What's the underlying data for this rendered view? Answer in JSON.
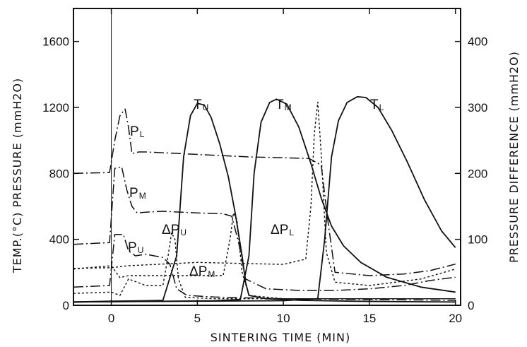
{
  "chart_data": {
    "type": "line",
    "title": "",
    "xlabel": "SINTERING TIME (MIN)",
    "ylabel_left": "TEMP.(°C) PRESSURE (mmH2O)",
    "ylabel_right": "PRESSURE DIFFERENCE (mmH2O)",
    "xlim": [
      -2.2,
      20.3
    ],
    "ylim_left": [
      0,
      1800
    ],
    "ylim_right": [
      0,
      450
    ],
    "x_ticks": [
      0,
      5,
      10,
      15,
      20
    ],
    "y_left_ticks": [
      0,
      400,
      800,
      1200,
      1600
    ],
    "y_right_ticks": [
      0,
      100,
      200,
      300,
      400
    ],
    "grid": false,
    "legend": "none",
    "series": [
      {
        "name": "TU",
        "label_main": "T",
        "label_sub": "U",
        "axis": "left",
        "style": "solid",
        "x": [
          -2.2,
          0,
          2,
          3,
          3.8,
          4.2,
          4.6,
          5.0,
          5.4,
          5.8,
          6.3,
          6.8,
          7.2,
          7.6,
          7.8,
          8.0,
          9,
          11,
          14,
          17,
          20
        ],
        "y": [
          20,
          25,
          28,
          30,
          300,
          900,
          1150,
          1225,
          1215,
          1140,
          980,
          780,
          560,
          300,
          140,
          60,
          40,
          30,
          25,
          22,
          20
        ]
      },
      {
        "name": "TM",
        "label_main": "T",
        "label_sub": "M",
        "axis": "left",
        "style": "solid",
        "x": [
          -2.2,
          0,
          6,
          7.5,
          8.0,
          8.3,
          8.7,
          9.2,
          9.6,
          10.2,
          10.9,
          11.6,
          12.2,
          12.8,
          13.5,
          14.5,
          16,
          18,
          20
        ],
        "y": [
          20,
          22,
          28,
          35,
          300,
          800,
          1110,
          1230,
          1250,
          1220,
          1080,
          860,
          650,
          480,
          360,
          260,
          170,
          110,
          80
        ]
      },
      {
        "name": "TL",
        "label_main": "T",
        "label_sub": "L",
        "axis": "left",
        "style": "solid",
        "x": [
          -2.2,
          0,
          10,
          12.0,
          12.4,
          12.8,
          13.2,
          13.7,
          14.3,
          14.8,
          15.5,
          16.3,
          17.2,
          18.2,
          19.2,
          20
        ],
        "y": [
          20,
          22,
          28,
          40,
          400,
          900,
          1120,
          1230,
          1265,
          1260,
          1200,
          1060,
          870,
          640,
          450,
          350
        ]
      },
      {
        "name": "PL",
        "label_main": "P",
        "label_sub": "L",
        "axis": "left",
        "style": "dash-dot",
        "x": [
          -2.2,
          -0.1,
          0.2,
          0.5,
          0.8,
          1.0,
          1.2,
          1.6,
          2,
          4,
          6,
          8,
          10,
          11.5,
          12.2,
          12.6,
          13,
          15,
          17,
          18.5,
          20
        ],
        "y": [
          800,
          805,
          1000,
          1150,
          1190,
          1080,
          920,
          930,
          930,
          920,
          910,
          900,
          895,
          890,
          850,
          500,
          200,
          180,
          190,
          210,
          250
        ]
      },
      {
        "name": "PM",
        "label_main": "P",
        "label_sub": "M",
        "axis": "left",
        "style": "dash-dot",
        "x": [
          -2.2,
          -0.1,
          0.2,
          0.6,
          0.9,
          1.2,
          1.5,
          2,
          3,
          5,
          6.5,
          7.0,
          7.4,
          7.8,
          9,
          11,
          13,
          15,
          17,
          18.5,
          20
        ],
        "y": [
          370,
          380,
          830,
          840,
          700,
          600,
          560,
          565,
          570,
          560,
          555,
          540,
          380,
          160,
          100,
          90,
          90,
          100,
          120,
          150,
          170
        ]
      },
      {
        "name": "PU",
        "label_main": "P",
        "label_sub": "U",
        "axis": "left",
        "style": "dash-dot",
        "x": [
          -2.2,
          -0.1,
          0.2,
          0.7,
          1.0,
          1.4,
          2,
          3,
          3.4,
          3.8,
          4.4,
          6,
          10,
          15,
          20
        ],
        "y": [
          110,
          120,
          430,
          430,
          330,
          300,
          310,
          290,
          250,
          100,
          60,
          50,
          40,
          35,
          30
        ]
      },
      {
        "name": "ΔPU",
        "label_main": "ΔP",
        "label_sub": "U",
        "axis": "right",
        "style": "dotted",
        "x": [
          -2.2,
          0,
          0.5,
          1.0,
          2,
          3.0,
          3.3,
          3.5,
          3.7,
          3.9,
          4.3,
          6,
          10,
          15,
          20
        ],
        "y": [
          18,
          20,
          15,
          40,
          30,
          30,
          75,
          110,
          100,
          40,
          12,
          10,
          10,
          10,
          10
        ]
      },
      {
        "name": "ΔPM",
        "label_main": "ΔP",
        "label_sub": "M",
        "axis": "right",
        "style": "dotted",
        "x": [
          -2.2,
          0,
          0.5,
          1.0,
          4,
          6.5,
          6.9,
          7.1,
          7.3,
          7.6,
          8.0,
          10,
          15,
          20
        ],
        "y": [
          55,
          60,
          42,
          45,
          45,
          45,
          100,
          140,
          130,
          50,
          15,
          10,
          10,
          10
        ]
      },
      {
        "name": "ΔPL",
        "label_main": "ΔP",
        "label_sub": "L",
        "axis": "right",
        "style": "dotted",
        "x": [
          -2.2,
          0,
          1.0,
          5,
          10,
          11.3,
          11.6,
          11.8,
          12.0,
          12.2,
          12.5,
          13.0,
          15,
          18,
          20
        ],
        "y": [
          56,
          57,
          60,
          65,
          62,
          70,
          150,
          260,
          308,
          230,
          80,
          35,
          30,
          40,
          55
        ]
      }
    ]
  }
}
